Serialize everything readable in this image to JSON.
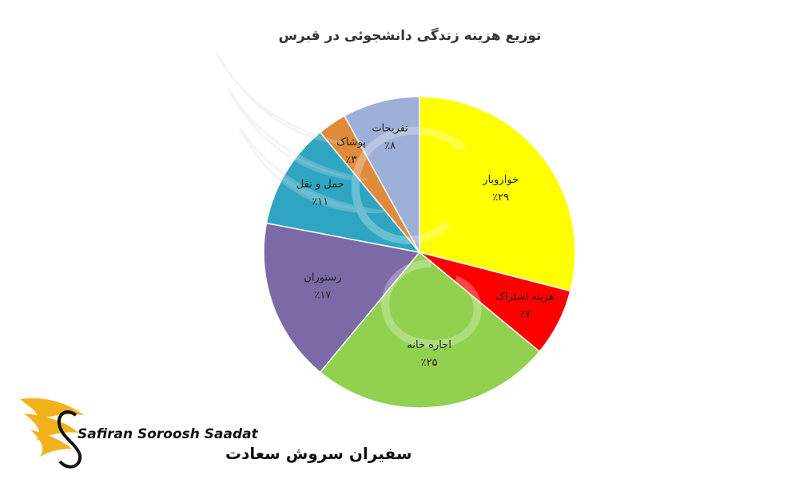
{
  "chart_data": {
    "type": "pie",
    "title": "توزیع هزینه زندگی دانشجوئی در قبرس",
    "slices": [
      {
        "label": "خواروبار",
        "value": 29,
        "value_label": "٪۲۹",
        "color": "#ffff00"
      },
      {
        "label": "هزینه اشتراک",
        "value": 7,
        "value_label": "٪۷",
        "color": "#ff0000"
      },
      {
        "label": "اجاره خانه",
        "value": 25,
        "value_label": "٪۲۵",
        "color": "#92d050"
      },
      {
        "label": "رستوران",
        "value": 17,
        "value_label": "٪۱۷",
        "color": "#7b6aa6"
      },
      {
        "label": "حمل و نقل",
        "value": 11,
        "value_label": "٪۱۱",
        "color": "#2ea6c2"
      },
      {
        "label": "پوشاک",
        "value": 3,
        "value_label": "٪۳",
        "color": "#e08a3c"
      },
      {
        "label": "تفریحات",
        "value": 8,
        "value_label": "٪۸",
        "color": "#9eb0d8"
      }
    ],
    "start_angle_deg": 0,
    "direction": "clockwise"
  },
  "brand": {
    "name_latin": "Safiran Soroosh Saadat",
    "name_persian": "سفیران سروش سعادت",
    "logo_icon": "golden-wing-swan-icon",
    "accent_color": "#f2b21b",
    "watermark_icon": "wing-swan-watermark-icon"
  }
}
